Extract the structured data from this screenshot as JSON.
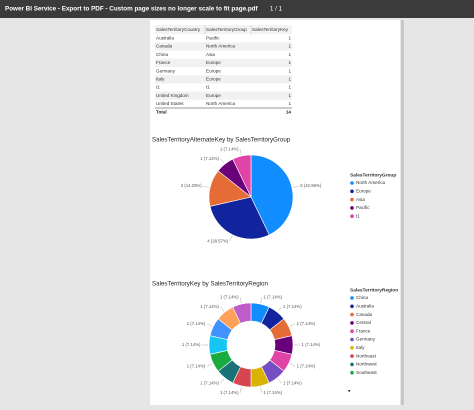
{
  "viewer": {
    "title": "Power BI Service - Export to PDF - Custom page sizes no longer scale to fit page.pdf",
    "page": "1 / 1"
  },
  "table": {
    "columns": [
      "SalesTerritoryCountry",
      "SalesTerritoryGroup",
      "SalesTerritoryKey"
    ],
    "rows": [
      [
        "Australia",
        "Pacific",
        1
      ],
      [
        "Canada",
        "North America",
        1
      ],
      [
        "China",
        "Asia",
        1
      ],
      [
        "France",
        "Europe",
        1
      ],
      [
        "Germany",
        "Europe",
        1
      ],
      [
        "Italy",
        "Europe",
        1
      ],
      [
        "t1",
        "t1",
        1
      ],
      [
        "United Kingdom",
        "Europe",
        1
      ],
      [
        "United States",
        "North America",
        1
      ]
    ],
    "total": {
      "label": "Total",
      "value": 14
    }
  },
  "charts": [
    {
      "type": "pie",
      "title": "SalesTerritoryAlternateKey by SalesTerritoryGroup",
      "legend_title": "SalesTerritoryGroup",
      "categories": [
        "North America",
        "Europe",
        "Asia",
        "Pacific",
        "t1"
      ],
      "values": [
        6,
        4,
        2,
        1,
        1
      ],
      "value_labels": [
        "6 (42.86%)",
        "4 (28.57%)",
        "2 (14.29%)",
        "1 (7.14%)",
        "1 (7.14%)"
      ],
      "colors": [
        "#118DFF",
        "#12239E",
        "#E66C37",
        "#6B007B",
        "#E044A7"
      ]
    },
    {
      "type": "donut",
      "title": "SalesTerritoryKey by SalesTerritoryRegion",
      "legend_title": "SalesTerritoryRegion",
      "categories": [
        "China",
        "Australia",
        "Canada",
        "Central",
        "France",
        "Germany",
        "Italy",
        "Northeast",
        "Northwest",
        "Southeast",
        null,
        null,
        null,
        null
      ],
      "values": [
        1,
        1,
        1,
        1,
        1,
        1,
        1,
        1,
        1,
        1,
        1,
        1,
        1,
        1
      ],
      "value_labels": [
        "1 (7.14%)",
        "1 (7.14%)",
        "1 (7.14%)",
        "1 (7.14%)",
        "1 (7.14%)",
        "1 (7.14%)",
        "1 (7.14%)",
        "1 (7.14%)",
        "1 (7.14%)",
        "1 (7.14%)",
        "1 (7.14%)",
        "1 (7.14%)",
        "1 (7.14%)",
        "1 (7.14%)"
      ],
      "colors": [
        "#118DFF",
        "#12239E",
        "#E66C37",
        "#6B007B",
        "#E044A7",
        "#744EC2",
        "#D9B300",
        "#D64550",
        "#197278",
        "#1AAB40",
        "#15C6F4",
        "#4092FF",
        "#FFA058",
        "#BE5DC9"
      ]
    }
  ]
}
